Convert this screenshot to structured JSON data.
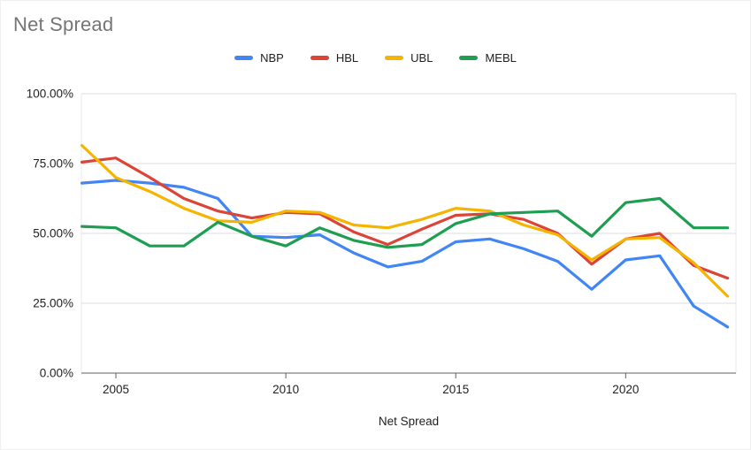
{
  "chart_data": {
    "type": "line",
    "title": "Net Spread",
    "xlabel": "Net Spread",
    "ylabel": "",
    "x": [
      2004,
      2005,
      2006,
      2007,
      2008,
      2009,
      2010,
      2011,
      2012,
      2013,
      2014,
      2015,
      2016,
      2017,
      2018,
      2019,
      2020,
      2021,
      2022,
      2023
    ],
    "series": [
      {
        "name": "NBP",
        "color": "#4285F4",
        "values": [
          68,
          69,
          68,
          66.5,
          62.5,
          49,
          48.5,
          49.5,
          43,
          38,
          40,
          47,
          48,
          44.5,
          40,
          30,
          40.5,
          42,
          24,
          16.5
        ]
      },
      {
        "name": "HBL",
        "color": "#DB4437",
        "values": [
          75.5,
          77,
          70,
          62.5,
          58,
          55.5,
          57.5,
          57,
          50.5,
          46,
          51.5,
          56.5,
          57,
          55,
          50,
          39,
          48,
          50,
          38.5,
          34
        ]
      },
      {
        "name": "UBL",
        "color": "#F5B400",
        "values": [
          81.5,
          70,
          65,
          59,
          54.5,
          54,
          58,
          57.5,
          53,
          52,
          55,
          59,
          58,
          53,
          49.5,
          40.5,
          48,
          48.5,
          39.5,
          27.5
        ]
      },
      {
        "name": "MEBL",
        "color": "#1E9E50",
        "values": [
          52.5,
          52,
          45.5,
          45.5,
          54,
          49,
          45.5,
          52,
          47.5,
          45,
          46,
          53.5,
          57,
          57.5,
          58,
          49,
          61,
          62.5,
          52,
          52
        ]
      }
    ],
    "ylim": [
      0,
      100
    ],
    "yticks": [
      0,
      25,
      50,
      75,
      100
    ],
    "ytick_labels": [
      "0.00%",
      "25.00%",
      "50.00%",
      "75.00%",
      "100.00%"
    ],
    "xticks": [
      2005,
      2010,
      2015,
      2020
    ],
    "xtick_labels": [
      "2005",
      "2010",
      "2015",
      "2020"
    ],
    "grid": true,
    "legend_position": "top"
  },
  "colors": {
    "gridline": "#dadce0",
    "baseline": "#616161",
    "tick": "#616161",
    "plot_border": "#e8e8e8",
    "title_text": "#757575",
    "label_text": "#1f1f1f"
  }
}
